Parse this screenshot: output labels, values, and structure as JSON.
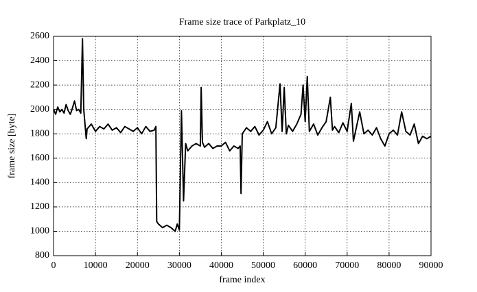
{
  "chart_data": {
    "type": "line",
    "title": "Frame size trace of Parkplatz_10",
    "x_label": "frame index",
    "y_label": "frame size [byte]",
    "color": "#000000",
    "grid": true,
    "x": [
      0,
      500,
      1000,
      1500,
      2000,
      2500,
      3000,
      3500,
      4000,
      4500,
      5000,
      5500,
      6000,
      6500,
      6900,
      7200,
      7500,
      7800,
      8000,
      9000,
      10000,
      11000,
      12000,
      13000,
      14000,
      15000,
      16000,
      17000,
      18000,
      19000,
      20000,
      21000,
      22000,
      23000,
      24000,
      24400,
      24600,
      25000,
      26000,
      27000,
      28000,
      29000,
      29500,
      30000,
      30500,
      31000,
      31500,
      32000,
      33000,
      34000,
      35000,
      35200,
      35500,
      36000,
      37000,
      38000,
      39000,
      40000,
      41000,
      42000,
      43000,
      44000,
      44500,
      44700,
      45000,
      46000,
      47000,
      48000,
      49000,
      50000,
      51000,
      52000,
      53000,
      54000,
      54500,
      55000,
      55500,
      56000,
      57000,
      58000,
      59000,
      59500,
      60000,
      60500,
      61000,
      62000,
      63000,
      64000,
      65000,
      66000,
      66500,
      67000,
      68000,
      69000,
      70000,
      71000,
      71500,
      72000,
      73000,
      74000,
      75000,
      76000,
      77000,
      78000,
      79000,
      80000,
      81000,
      82000,
      83000,
      84000,
      85000,
      86000,
      87000,
      88000,
      89000,
      90000
    ],
    "values": [
      2000,
      1960,
      2020,
      1980,
      2000,
      1970,
      2040,
      1990,
      1960,
      2010,
      2070,
      1990,
      2000,
      1970,
      2580,
      2000,
      1880,
      1760,
      1840,
      1880,
      1820,
      1860,
      1840,
      1880,
      1830,
      1850,
      1810,
      1860,
      1840,
      1820,
      1850,
      1800,
      1860,
      1820,
      1830,
      1860,
      1080,
      1060,
      1030,
      1050,
      1030,
      1000,
      1060,
      1010,
      1990,
      1250,
      1720,
      1660,
      1700,
      1720,
      1700,
      2180,
      1730,
      1690,
      1720,
      1680,
      1700,
      1700,
      1730,
      1660,
      1700,
      1680,
      1700,
      1310,
      1800,
      1850,
      1820,
      1860,
      1790,
      1830,
      1900,
      1800,
      1850,
      2210,
      1820,
      2180,
      1800,
      1870,
      1820,
      1880,
      1960,
      2200,
      1900,
      2270,
      1820,
      1880,
      1790,
      1850,
      1900,
      2100,
      1830,
      1860,
      1810,
      1890,
      1820,
      2050,
      1740,
      1820,
      1980,
      1800,
      1830,
      1790,
      1850,
      1760,
      1700,
      1800,
      1830,
      1790,
      1980,
      1820,
      1790,
      1880,
      1720,
      1780,
      1760,
      1780
    ],
    "xlim": [
      0,
      90000
    ],
    "xticks": [
      0,
      10000,
      20000,
      30000,
      40000,
      50000,
      60000,
      70000,
      80000,
      90000
    ],
    "ylim": [
      800,
      2600
    ],
    "yticks": [
      800,
      1000,
      1200,
      1400,
      1600,
      1800,
      2000,
      2200,
      2400,
      2600
    ]
  }
}
